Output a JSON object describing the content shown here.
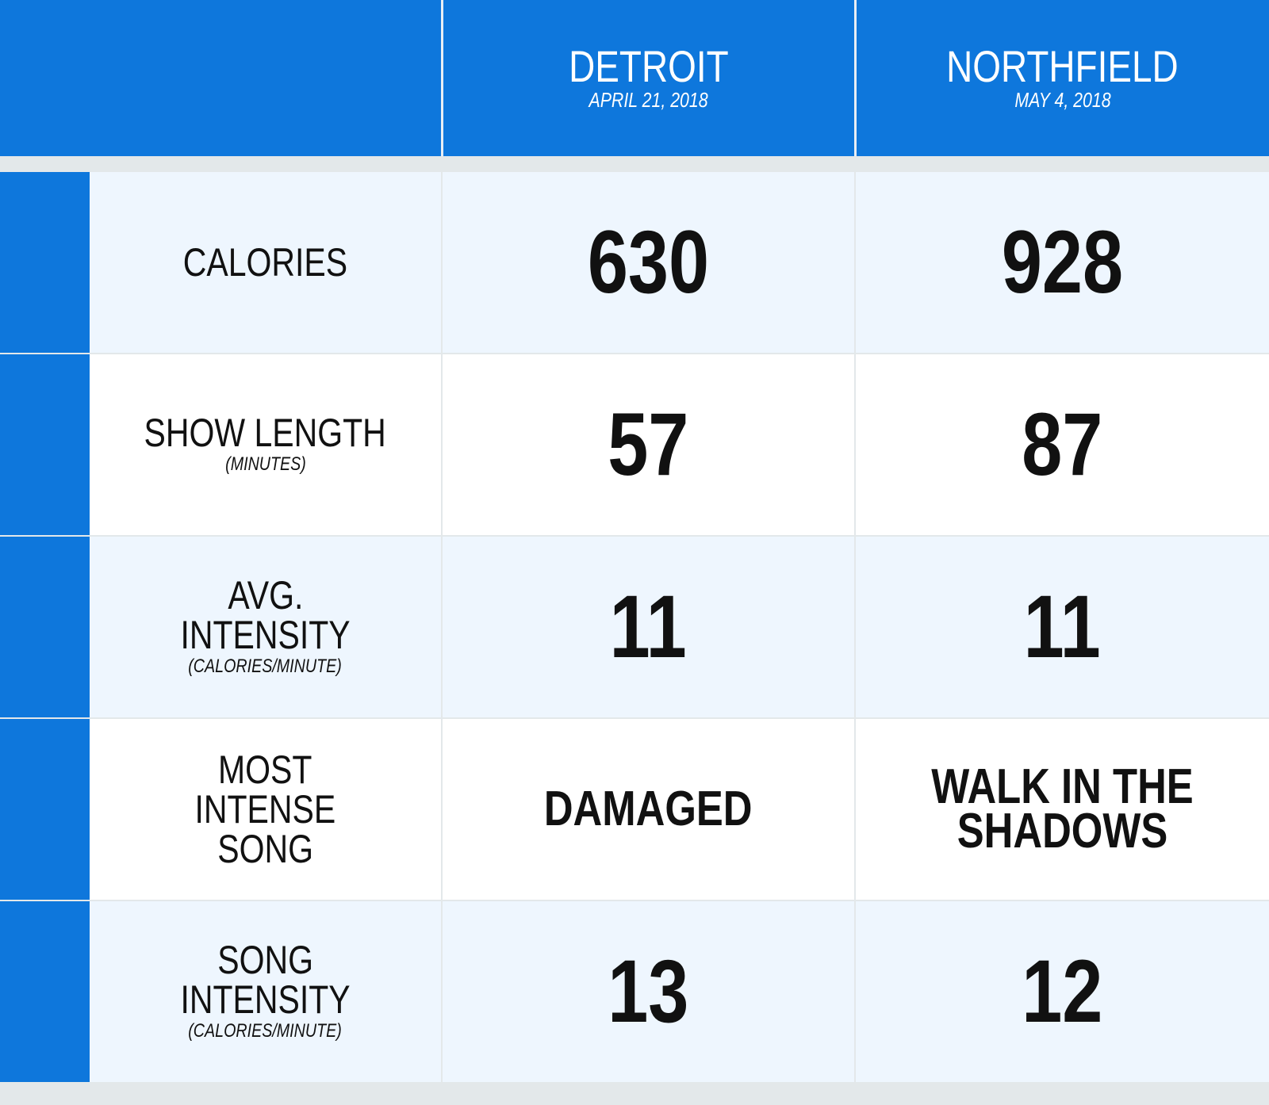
{
  "header": {
    "columns": [
      {
        "title": "DETROIT",
        "date": "APRIL 21, 2018"
      },
      {
        "title": "NORTHFIELD",
        "date": "MAY 4, 2018"
      }
    ]
  },
  "table": {
    "rows": [
      {
        "label": [
          "CALORIES"
        ],
        "values": [
          630,
          928
        ]
      },
      {
        "label": [
          "SHOW LENGTH"
        ],
        "note": "(MINUTES)",
        "values": [
          57,
          87
        ]
      },
      {
        "label": [
          "AVG.",
          "INTENSITY"
        ],
        "note": "(CALORIES/MINUTE)",
        "values": [
          11,
          11
        ]
      },
      {
        "label": [
          "MOST",
          "INTENSE",
          "SONG"
        ],
        "values": [
          "DAMAGED",
          "WALK IN THE SHADOWS"
        ]
      },
      {
        "label": [
          "SONG",
          "INTENSITY"
        ],
        "note": "(CALORIES/MINUTE)",
        "values": [
          13,
          12
        ]
      }
    ]
  }
}
